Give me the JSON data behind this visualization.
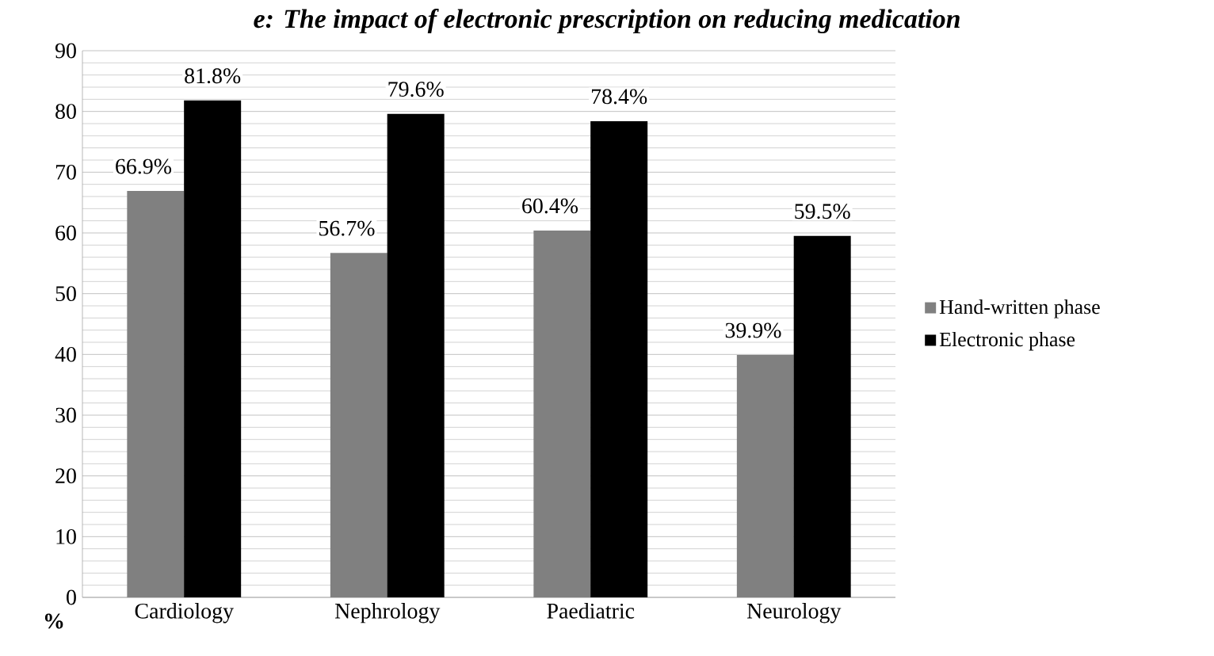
{
  "chart_data": {
    "type": "bar",
    "title": "e: The impact of electronic prescription on reducing medication",
    "ylabel": "%",
    "categories": [
      "Cardiology",
      "Nephrology",
      "Paediatric",
      "Neurology"
    ],
    "series": [
      {
        "name": "Hand-written phase",
        "color": "#808080",
        "values": [
          66.9,
          56.7,
          60.4,
          39.9
        ],
        "value_labels": [
          "66.9%",
          "56.7%",
          "60.4%",
          "39.9%"
        ]
      },
      {
        "name": "Electronic phase",
        "color": "#000000",
        "values": [
          81.8,
          79.6,
          78.4,
          59.5
        ],
        "value_labels": [
          "81.8%",
          "79.6%",
          "78.4%",
          "59.5%"
        ]
      }
    ],
    "ylim": [
      0,
      90
    ],
    "yticks": [
      0,
      10,
      20,
      30,
      40,
      50,
      60,
      70,
      80,
      90
    ],
    "grid": "y",
    "legend": "right"
  }
}
